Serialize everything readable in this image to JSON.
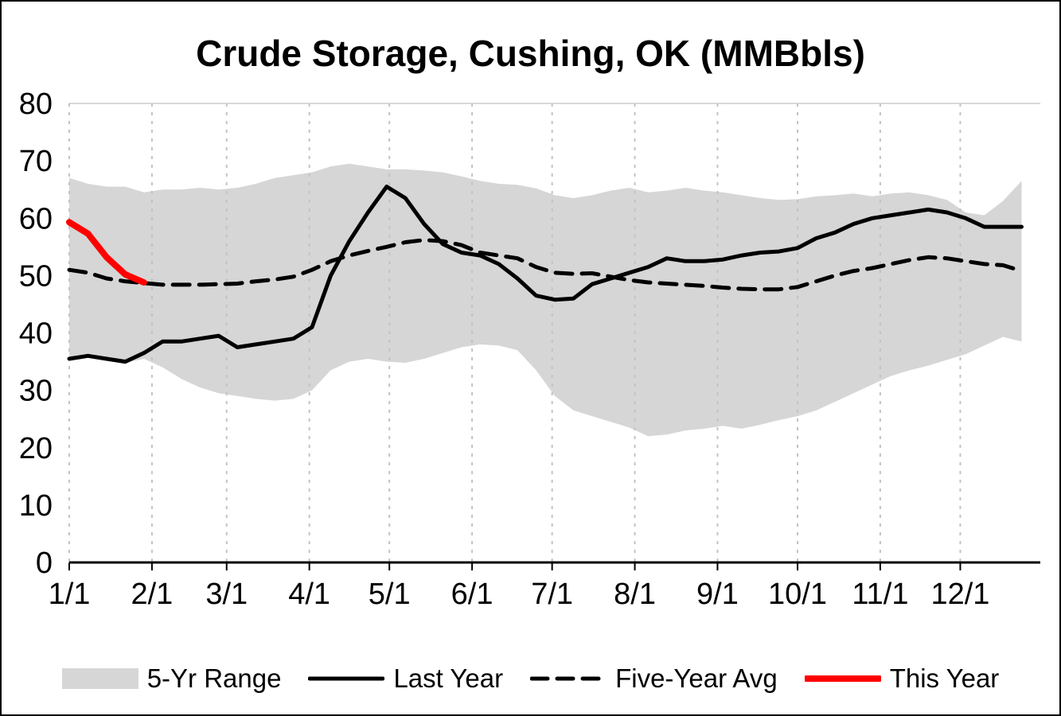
{
  "chart_data": {
    "type": "line",
    "title": "Crude Storage, Cushing, OK (MMBbls)",
    "ylim": [
      0,
      80
    ],
    "yticks": [
      0,
      10,
      20,
      30,
      40,
      50,
      60,
      70,
      80
    ],
    "xtick_labels": [
      "1/1",
      "2/1",
      "3/1",
      "4/1",
      "5/1",
      "6/1",
      "7/1",
      "8/1",
      "9/1",
      "10/1",
      "11/1",
      "12/1"
    ],
    "xtick_days": [
      0,
      31,
      59,
      90,
      120,
      151,
      181,
      212,
      243,
      273,
      304,
      334
    ],
    "x_range_days": [
      0,
      364
    ],
    "grid": "vertical-dashed",
    "legend_position": "bottom",
    "colors": {
      "band": "#d6d6d6",
      "line": "#000000",
      "this_year": "#ff0000",
      "gridline": "#c3c3c3",
      "axis": "#000000"
    },
    "x_days": [
      0,
      7,
      14,
      21,
      28,
      35,
      42,
      49,
      56,
      63,
      70,
      77,
      84,
      91,
      98,
      105,
      112,
      119,
      126,
      133,
      140,
      147,
      154,
      161,
      168,
      175,
      182,
      189,
      196,
      203,
      210,
      217,
      224,
      231,
      238,
      245,
      252,
      259,
      266,
      273,
      280,
      287,
      294,
      301,
      308,
      315,
      322,
      329,
      336,
      343,
      350,
      357
    ],
    "band": {
      "name": "5-Yr Range",
      "color": "#d6d6d6",
      "upper": [
        67,
        66,
        65.5,
        65.5,
        64.5,
        65,
        65,
        65.3,
        65,
        65.3,
        66,
        67,
        67.5,
        68,
        69,
        69.5,
        69,
        68.5,
        68.5,
        68.3,
        68,
        67.3,
        66.5,
        66,
        65.8,
        65.2,
        64,
        63.5,
        64,
        64.8,
        65.3,
        64.5,
        64.8,
        65.3,
        64.8,
        64.5,
        64,
        63.5,
        63.2,
        63.3,
        63.8,
        64,
        64.3,
        63.8,
        64.3,
        64.5,
        64,
        63.2,
        61,
        60.5,
        63,
        66.5
      ],
      "lower": [
        35.3,
        35.8,
        35.3,
        34.8,
        35.5,
        34,
        32,
        30.5,
        29.5,
        29,
        28.5,
        28.2,
        28.5,
        30,
        33.5,
        35,
        35.5,
        35,
        34.8,
        35.5,
        36.5,
        37.5,
        38,
        37.8,
        37,
        33.5,
        29,
        26.5,
        25.5,
        24.5,
        23.5,
        22,
        22.3,
        23,
        23.3,
        23.8,
        23.3,
        24,
        24.8,
        25.5,
        26.5,
        28,
        29.5,
        31,
        32.5,
        33.5,
        34.3,
        35.3,
        36.3,
        37.8,
        39.3,
        38.5
      ]
    },
    "series": [
      {
        "name": "Last Year",
        "color": "#000000",
        "dash": "solid",
        "width": 5,
        "values": [
          35.5,
          36,
          35.5,
          35,
          36.5,
          38.5,
          38.5,
          39,
          39.5,
          37.5,
          38,
          38.5,
          39,
          41,
          50,
          56,
          61,
          65.5,
          63.5,
          59,
          55.5,
          54,
          53.5,
          52,
          49.5,
          46.5,
          45.8,
          46,
          48.5,
          49.5,
          50.5,
          51.5,
          53,
          52.5,
          52.5,
          52.8,
          53.5,
          54,
          54.2,
          54.8,
          56.5,
          57.5,
          59,
          60,
          60.5,
          61,
          61.5,
          61,
          60,
          58.5,
          58.5,
          58.5
        ]
      },
      {
        "name": "Five-Year Avg",
        "color": "#000000",
        "dash": "dashed",
        "width": 5,
        "values": [
          51,
          50.5,
          49.5,
          49,
          48.7,
          48.4,
          48.4,
          48.4,
          48.5,
          48.6,
          49,
          49.3,
          49.8,
          51,
          52.5,
          53.5,
          54.3,
          55,
          55.8,
          56.2,
          56,
          55.3,
          54,
          53.5,
          53,
          51.5,
          50.5,
          50.3,
          50.4,
          49.8,
          49.2,
          48.8,
          48.6,
          48.4,
          48.2,
          47.9,
          47.7,
          47.6,
          47.6,
          48,
          49,
          50,
          50.8,
          51.3,
          52,
          52.7,
          53.2,
          53,
          52.5,
          52,
          51.8,
          50.8
        ]
      },
      {
        "name": "This Year",
        "color": "#ff0000",
        "dash": "solid",
        "width": 8,
        "x_days": [
          0,
          7,
          14,
          21,
          28
        ],
        "values": [
          59.3,
          57.3,
          53.2,
          50.2,
          48.8
        ]
      }
    ],
    "legend": [
      {
        "key": "five-yr-range",
        "label": "5-Yr Range",
        "swatch": "band"
      },
      {
        "key": "last-year",
        "label": "Last Year",
        "swatch": "line",
        "color": "#000000",
        "width": 5,
        "dash": false
      },
      {
        "key": "five-year-avg",
        "label": "Five-Year Avg",
        "swatch": "line",
        "color": "#000000",
        "width": 5,
        "dash": true
      },
      {
        "key": "this-year",
        "label": "This Year",
        "swatch": "line",
        "color": "#ff0000",
        "width": 8,
        "dash": false
      }
    ]
  }
}
